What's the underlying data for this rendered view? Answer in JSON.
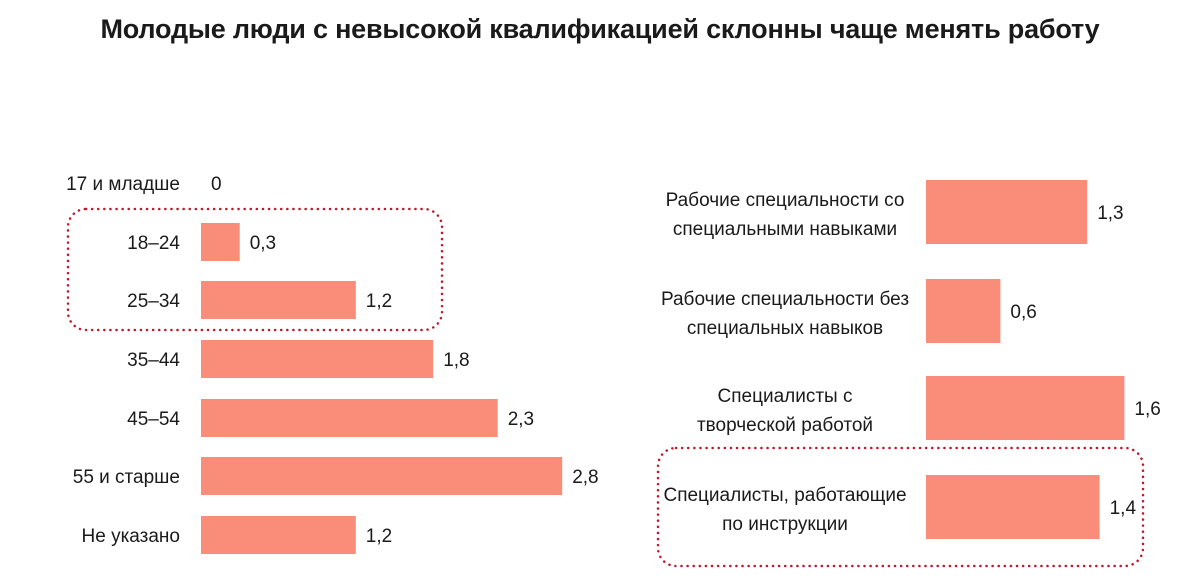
{
  "title": "Молодые люди с невысокой квалификацией склонны чаще менять работу",
  "colors": {
    "bar": "#fa8c7a",
    "highlight": "#c0182d",
    "text": "#1a1a1a"
  },
  "chart_data": [
    {
      "type": "bar",
      "orientation": "horizontal",
      "categories": [
        "17 и младше",
        "18–24",
        "25–34",
        "35–44",
        "45–54",
        "55 и старше",
        "Не указано"
      ],
      "values": [
        0,
        0.3,
        1.2,
        1.8,
        2.3,
        2.8,
        1.2
      ],
      "value_labels": [
        "0",
        "0,3",
        "1,2",
        "1,8",
        "2,3",
        "2,8",
        "1,2"
      ],
      "highlighted": [
        "18–24",
        "25–34"
      ],
      "grid": false
    },
    {
      "type": "bar",
      "orientation": "horizontal",
      "categories": [
        [
          "Рабочие специальности со",
          "специальными навыками"
        ],
        [
          "Рабочие специальности без",
          "специальных навыков"
        ],
        [
          "Специалисты с",
          "творческой работой"
        ],
        [
          "Специалисты, работающие",
          "по инструкции"
        ]
      ],
      "values": [
        1.3,
        0.6,
        1.6,
        1.4
      ],
      "value_labels": [
        "1,3",
        "0,6",
        "1,6",
        "1,4"
      ],
      "highlighted": [
        "Специалисты, работающие по инструкции"
      ],
      "grid": false
    }
  ]
}
